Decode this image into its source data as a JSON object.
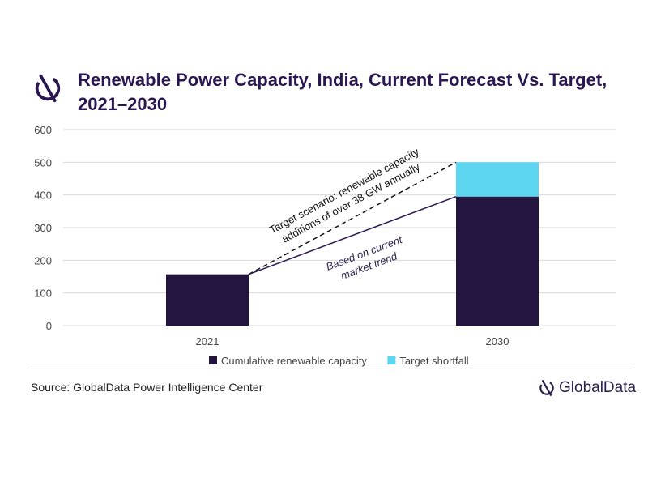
{
  "title": "Renewable Power Capacity, India, Current Forecast Vs. Target, 2021–2030",
  "source": "Source: GlobalData Power Intelligence Center",
  "brand": "GlobalData",
  "colors": {
    "cumulative": "#231440",
    "shortfall": "#5cd6f0",
    "grid": "#d9d9d9",
    "axis_text": "#444444",
    "annotation_text": "#2a1f4a"
  },
  "chart_data": {
    "type": "bar",
    "stacked": true,
    "categories": [
      "2021",
      "2030"
    ],
    "series": [
      {
        "name": "Cumulative renewable capacity",
        "values": [
          157,
          395
        ]
      },
      {
        "name": "Target shortfall",
        "values": [
          0,
          105
        ]
      }
    ],
    "ylim": [
      0,
      600
    ],
    "yticks": [
      "0",
      "100",
      "200",
      "300",
      "400",
      "500",
      "600"
    ],
    "grid": true,
    "legend": "bottom",
    "annotations": {
      "target_line": [
        "Target scenario: renewable capacity",
        "additions of over 38 GW annually"
      ],
      "trend_line": [
        "Based on current",
        "market trend"
      ]
    }
  }
}
